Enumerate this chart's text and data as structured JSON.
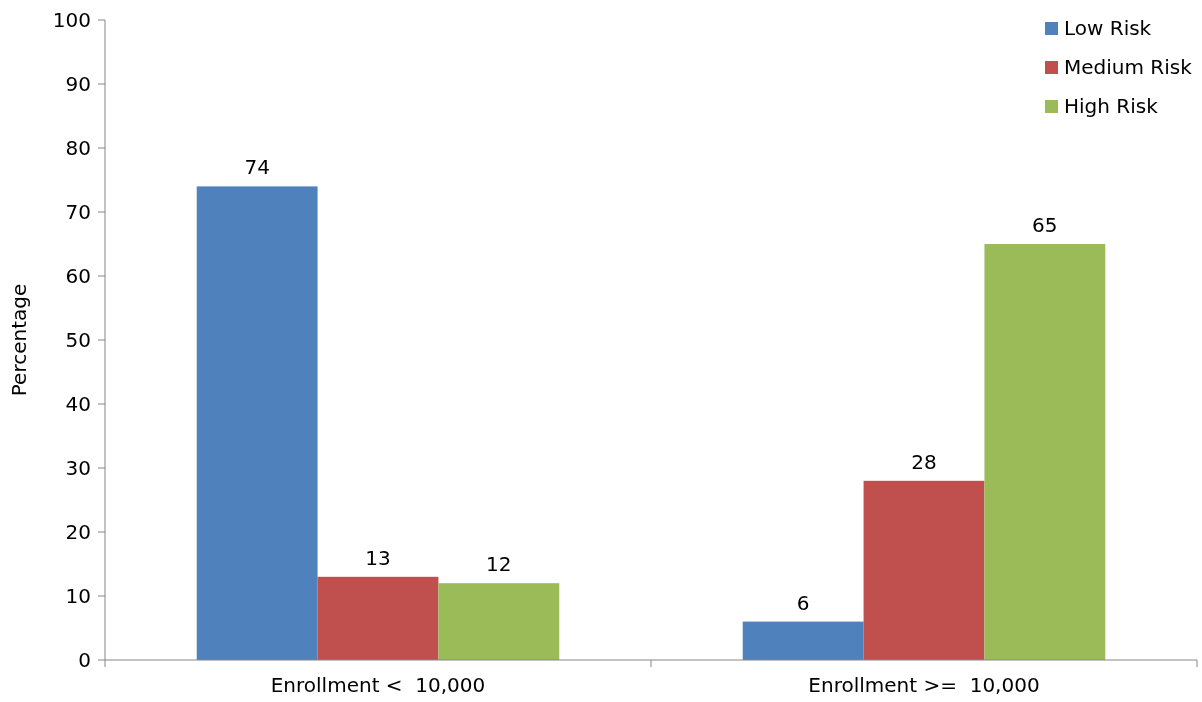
{
  "chart_data": {
    "type": "bar",
    "ylabel": "Percentage",
    "categories": [
      "Enrollment <  10,000",
      "Enrollment >=  10,000"
    ],
    "series": [
      {
        "name": "Low Risk",
        "color": "#4f81bd",
        "values": [
          74,
          6
        ]
      },
      {
        "name": "Medium Risk",
        "color": "#c0504d",
        "values": [
          13,
          28
        ]
      },
      {
        "name": "High Risk",
        "color": "#9bbb59",
        "values": [
          12,
          65
        ]
      }
    ],
    "ylim": [
      0,
      100
    ],
    "yticks": [
      0,
      10,
      20,
      30,
      40,
      50,
      60,
      70,
      80,
      90,
      100
    ],
    "grid": false,
    "legend": "top right",
    "data_labels": true
  }
}
